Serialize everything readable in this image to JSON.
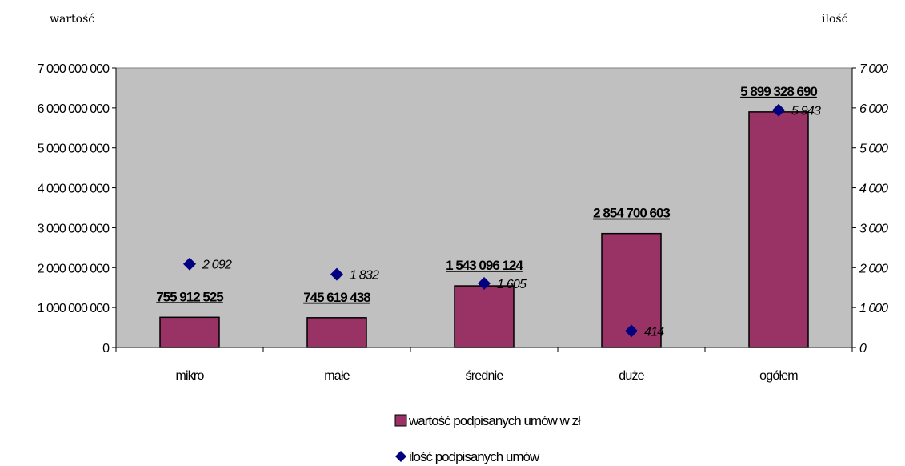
{
  "chart_data": {
    "type": "bar",
    "categories": [
      "mikro",
      "małe",
      "średnie",
      "duże",
      "ogółem"
    ],
    "series": [
      {
        "name": "wartość podpisanych umów w zł",
        "type": "bar",
        "axis": "left",
        "values": [
          755912525,
          745619438,
          1543096124,
          2854700603,
          5899328690
        ],
        "labels": [
          "755 912 525",
          "745 619 438",
          "1 543 096 124",
          "2 854 700 603",
          "5 899 328 690"
        ],
        "color": "#993366"
      },
      {
        "name": "ilość podpisanych umów",
        "type": "scatter",
        "axis": "right",
        "values": [
          2092,
          1832,
          1605,
          414,
          5943
        ],
        "labels": [
          "2 092",
          "1 832",
          "1 605",
          "414",
          "5 943"
        ],
        "color": "#000080"
      }
    ],
    "ylabel_left": "wartość",
    "ylabel_right": "ilość",
    "ylim_left": [
      0,
      7000000000
    ],
    "ylim_right": [
      0,
      7000
    ],
    "yticks_left": [
      "0",
      "1 000 000 000",
      "2 000 000 000",
      "3 000 000 000",
      "4 000 000 000",
      "5 000 000 000",
      "6 000 000 000",
      "7 000 000 000"
    ],
    "yticks_right": [
      "0",
      "1 000",
      "2 000",
      "3 000",
      "4 000",
      "5 000",
      "6 000",
      "7 000"
    ],
    "plot_background": "#c0c0c0",
    "grid": false,
    "legend_position": "bottom"
  }
}
